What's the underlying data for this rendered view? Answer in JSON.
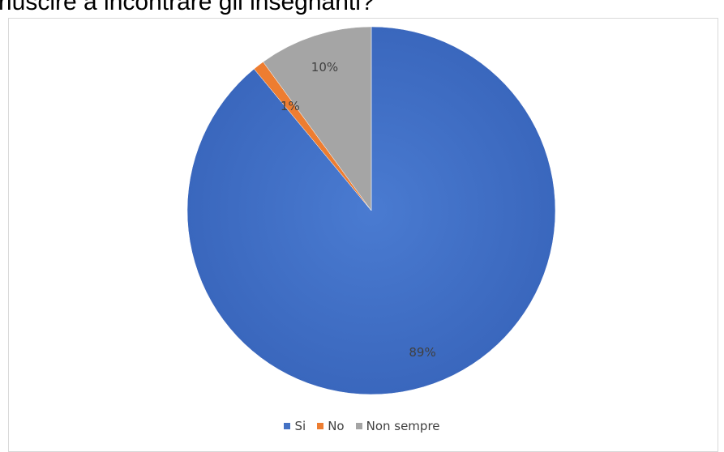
{
  "heading": "riuscire a incontrare gli insegnanti?",
  "chart_data": {
    "type": "pie",
    "title": "",
    "slices": [
      {
        "name": "Si",
        "value": 89,
        "label": "89%",
        "color": "#4472c4"
      },
      {
        "name": "No",
        "value": 1,
        "label": "1%",
        "color": "#ed7d31"
      },
      {
        "name": "Non sempre",
        "value": 10,
        "label": "10%",
        "color": "#a5a5a5"
      }
    ],
    "legend_position": "bottom"
  }
}
